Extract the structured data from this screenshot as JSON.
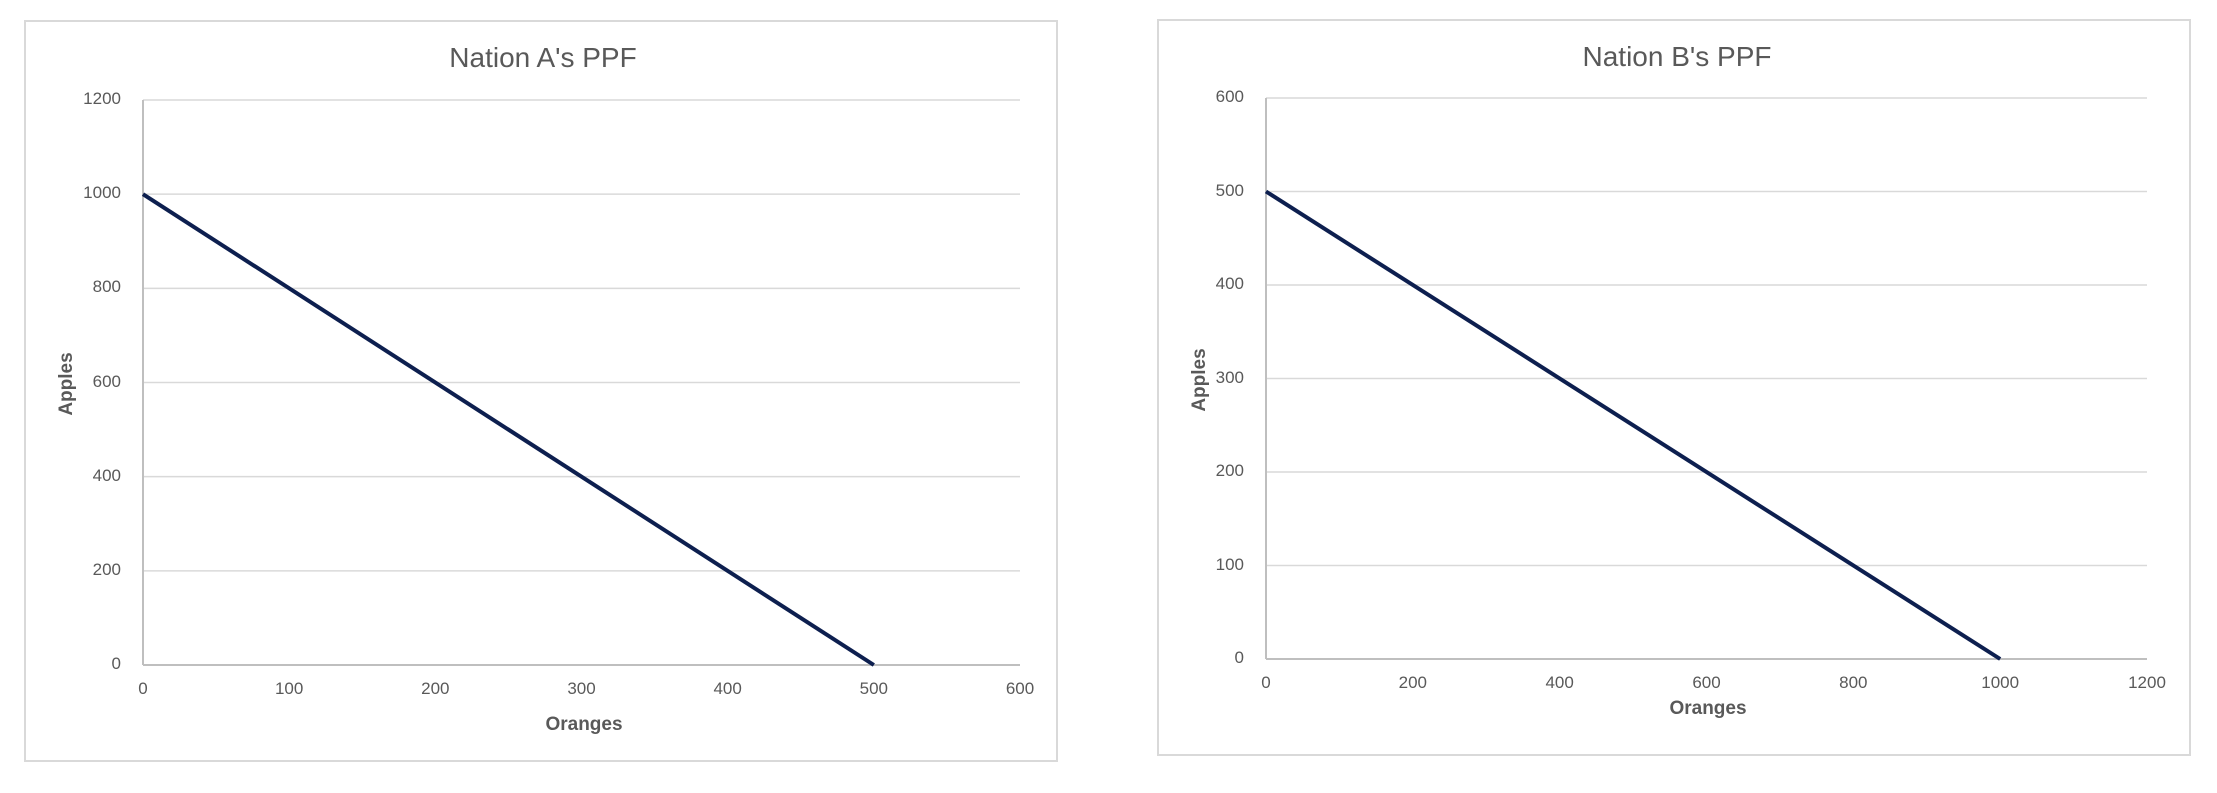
{
  "chart_data": [
    {
      "type": "line",
      "title": "Nation A's PPF",
      "xlabel": "Oranges",
      "ylabel": "Apples",
      "xlim": [
        0,
        600
      ],
      "ylim": [
        0,
        1200
      ],
      "x_ticks": [
        0,
        100,
        200,
        300,
        400,
        500,
        600
      ],
      "y_ticks": [
        0,
        200,
        400,
        600,
        800,
        1000,
        1200
      ],
      "grid": "horizontal",
      "legend": "none",
      "series": [
        {
          "name": "PPF",
          "color": "#0d1f4f",
          "x": [
            0,
            500
          ],
          "y": [
            1000,
            0
          ]
        }
      ]
    },
    {
      "type": "line",
      "title": "Nation B's PPF",
      "xlabel": "Oranges",
      "ylabel": "Apples",
      "xlim": [
        0,
        1200
      ],
      "ylim": [
        0,
        600
      ],
      "x_ticks": [
        0,
        200,
        400,
        600,
        800,
        1000,
        1200
      ],
      "y_ticks": [
        0,
        100,
        200,
        300,
        400,
        500,
        600
      ],
      "grid": "horizontal",
      "legend": "none",
      "series": [
        {
          "name": "PPF",
          "color": "#0d1f4f",
          "x": [
            0,
            1000
          ],
          "y": [
            500,
            0
          ]
        }
      ]
    }
  ],
  "charts": [
    {
      "title": "Nation A's PPF",
      "xlabel": "Oranges",
      "ylabel": "Apples"
    },
    {
      "title": "Nation B's PPF",
      "xlabel": "Oranges",
      "ylabel": "Apples"
    }
  ],
  "colors": {
    "line": "#0d1f4f",
    "grid": "#d9d9d9",
    "axis": "#bfbfbf",
    "text": "#595959",
    "border": "#d9d9d9"
  }
}
